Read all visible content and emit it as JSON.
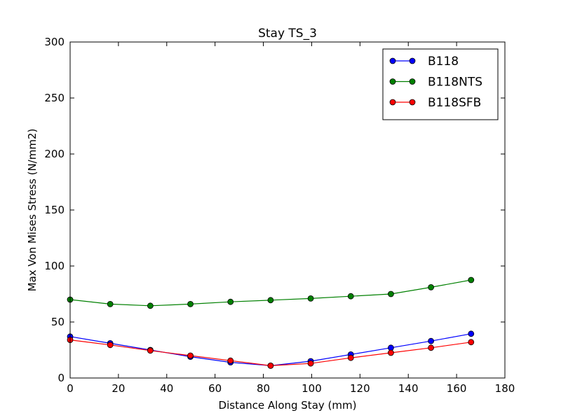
{
  "chart_data": {
    "type": "line",
    "title": "Stay TS_3",
    "xlabel": "Distance Along Stay (mm)",
    "ylabel": "Max Von Mises Stress (N/mm2)",
    "xlim": [
      0,
      180
    ],
    "ylim": [
      0,
      300
    ],
    "xticks": [
      0,
      20,
      40,
      60,
      80,
      100,
      120,
      140,
      160,
      180
    ],
    "yticks": [
      0,
      50,
      100,
      150,
      200,
      250,
      300
    ],
    "grid": false,
    "legend_position": "top-right",
    "x": [
      0,
      16.6,
      33.2,
      49.8,
      66.4,
      83.0,
      99.6,
      116.2,
      132.8,
      149.4,
      166.0
    ],
    "series": [
      {
        "name": "B118",
        "color": "#0000ff",
        "values": [
          37,
          31,
          25,
          19,
          14,
          11,
          15,
          21,
          27,
          33,
          39.5
        ]
      },
      {
        "name": "B118NTS",
        "color": "#008000",
        "values": [
          70,
          66,
          64.5,
          66,
          68,
          69.5,
          71,
          73,
          75,
          81,
          87.5
        ]
      },
      {
        "name": "B118SFB",
        "color": "#ff0000",
        "values": [
          34,
          29.5,
          24.5,
          20,
          15.5,
          11,
          13,
          18,
          22.5,
          27,
          32
        ]
      }
    ]
  }
}
